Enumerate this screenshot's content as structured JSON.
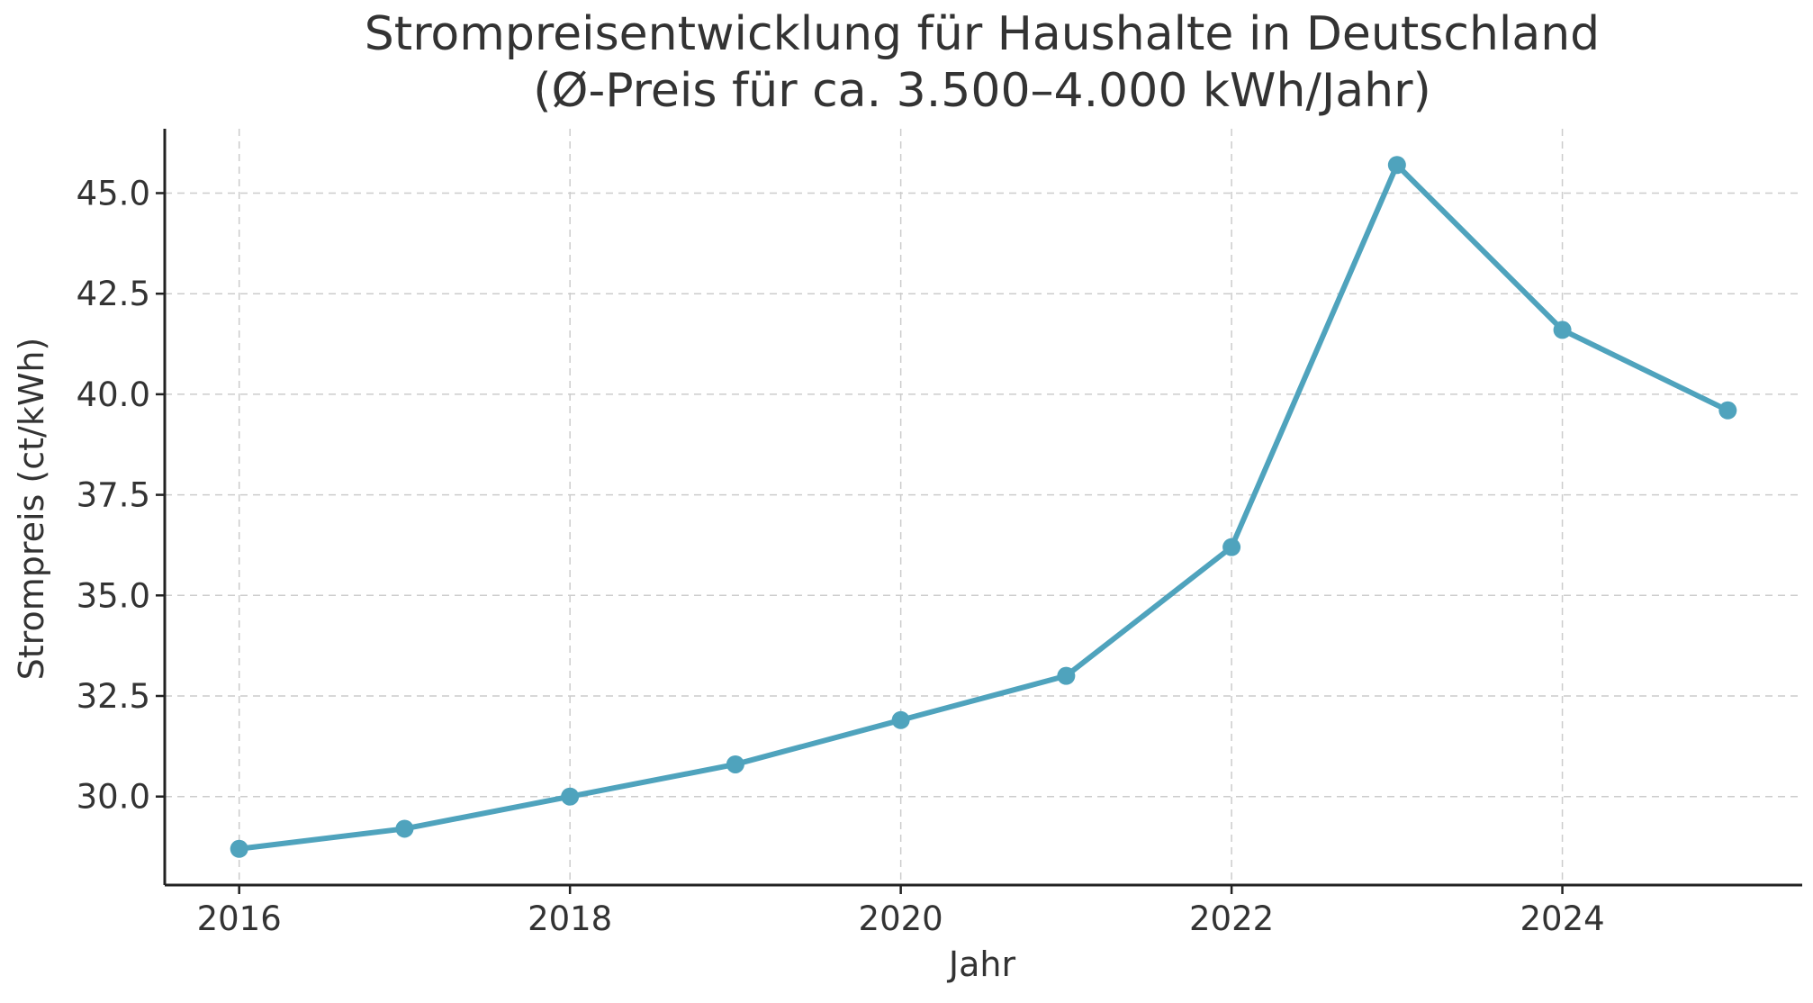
{
  "chart_data": {
    "type": "line",
    "title_line1": "Strompreisentwicklung für Haushalte in Deutschland",
    "title_line2": "(Ø-Preis für ca. 3.500–4.000 kWh/Jahr)",
    "xlabel": "Jahr",
    "ylabel": "Strompreis (ct/kWh)",
    "x": [
      2016,
      2017,
      2018,
      2019,
      2020,
      2021,
      2022,
      2023,
      2024,
      2025
    ],
    "series": [
      {
        "values": [
          28.7,
          29.2,
          30.0,
          30.8,
          31.9,
          33.0,
          36.2,
          45.7,
          41.6,
          39.6
        ]
      }
    ],
    "xlim": [
      2015.55,
      2025.45
    ],
    "ylim": [
      27.8,
      46.6
    ],
    "xticks": [
      2016,
      2018,
      2020,
      2022,
      2024
    ],
    "xtick_labels": [
      "2016",
      "2018",
      "2020",
      "2022",
      "2024"
    ],
    "yticks": [
      30.0,
      32.5,
      35.0,
      37.5,
      40.0,
      42.5,
      45.0
    ],
    "ytick_labels": [
      "30.0",
      "32.5",
      "35.0",
      "37.5",
      "40.0",
      "42.5",
      "45.0"
    ],
    "grid": true,
    "line_color": "#4fa3bd",
    "marker": "circle"
  }
}
